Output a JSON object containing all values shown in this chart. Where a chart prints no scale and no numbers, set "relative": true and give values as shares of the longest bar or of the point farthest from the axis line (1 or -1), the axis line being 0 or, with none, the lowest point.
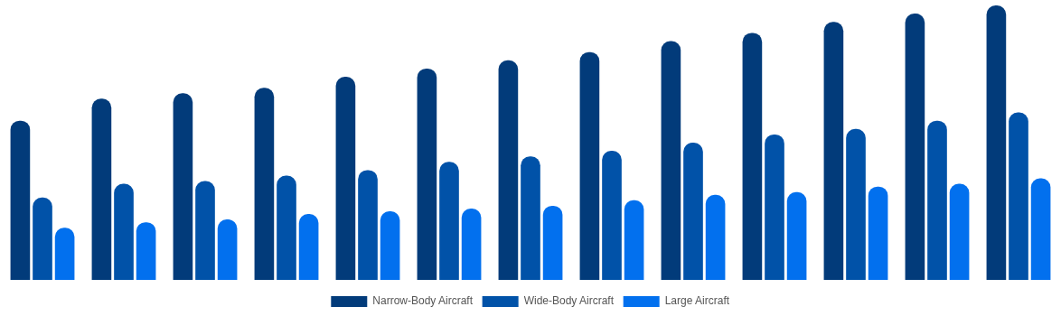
{
  "chart_data": {
    "type": "bar",
    "relative": true,
    "legend": "bottom",
    "categories": [
      null,
      null,
      null,
      null,
      null,
      null,
      null,
      null,
      null,
      null,
      null,
      null,
      null
    ],
    "series": [
      {
        "name": "Narrow-Body Aircraft",
        "color": "#023b7a",
        "values": [
          0.58,
          0.66,
          0.68,
          0.7,
          0.74,
          0.77,
          0.8,
          0.83,
          0.87,
          0.9,
          0.94,
          0.97,
          1
        ]
      },
      {
        "name": "Wide-Body Aircraft",
        "color": "#0152a8",
        "values": [
          0.3,
          0.35,
          0.36,
          0.38,
          0.4,
          0.43,
          0.45,
          0.47,
          0.5,
          0.53,
          0.55,
          0.58,
          0.61
        ]
      },
      {
        "name": "Large Aircraft",
        "color": "#0270ee",
        "values": [
          0.19,
          0.21,
          0.22,
          0.24,
          0.25,
          0.26,
          0.27,
          0.29,
          0.31,
          0.32,
          0.34,
          0.35,
          0.37
        ]
      }
    ]
  }
}
